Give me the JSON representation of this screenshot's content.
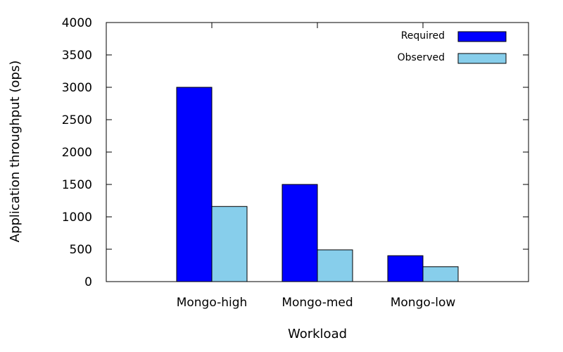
{
  "chart_data": {
    "type": "bar",
    "categories": [
      "Mongo-high",
      "Mongo-med",
      "Mongo-low"
    ],
    "series": [
      {
        "name": "Required",
        "values": [
          3000,
          1500,
          400
        ],
        "color": "#0000ff"
      },
      {
        "name": "Observed",
        "values": [
          1160,
          490,
          230
        ],
        "color": "#87ceeb"
      }
    ],
    "xlabel": "Workload",
    "ylabel": "Application throughput (ops)",
    "ylim": [
      0,
      4000
    ],
    "yticks": [
      "0",
      "500",
      "1000",
      "1500",
      "2000",
      "2500",
      "3000",
      "3500",
      "4000"
    ],
    "grid": false,
    "legend_position": "top-right"
  }
}
